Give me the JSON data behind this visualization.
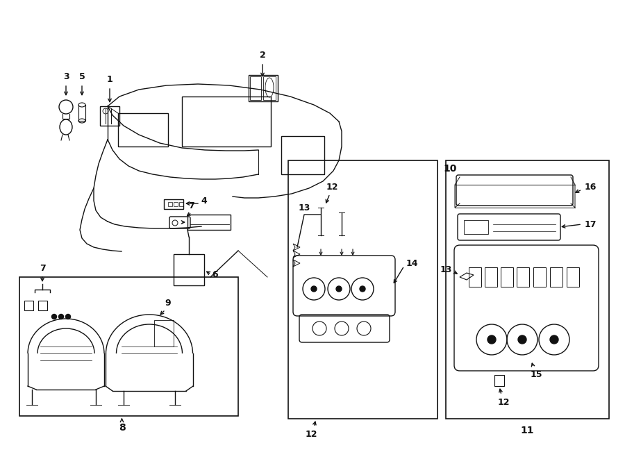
{
  "background_color": "#ffffff",
  "line_color": "#111111",
  "figsize": [
    9.0,
    6.61
  ],
  "dpi": 100
}
